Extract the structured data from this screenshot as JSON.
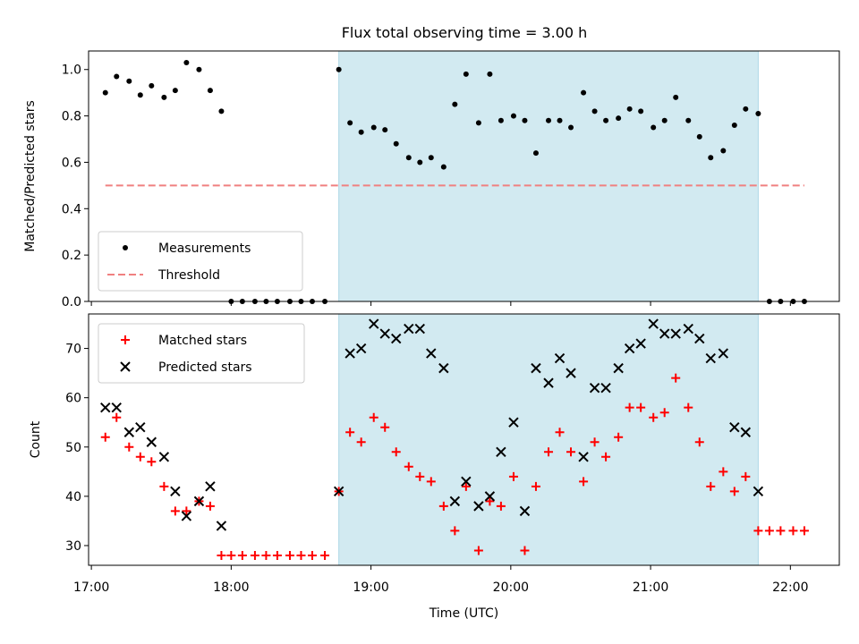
{
  "figure": {
    "title": "Flux total observing time = 3.00 h"
  },
  "chart_data": [
    {
      "type": "scatter",
      "ylabel": "Matched/Predicted stars",
      "xlim": [
        16.98,
        22.35
      ],
      "ylim": [
        0,
        1.08
      ],
      "yticks": [
        "0.0",
        "0.2",
        "0.4",
        "0.6",
        "0.8",
        "1.0"
      ],
      "ytick_values": [
        0,
        0.2,
        0.4,
        0.6,
        0.8,
        1.0
      ],
      "shaded_region": [
        18.77,
        21.77
      ],
      "shade_color": "#add8e6",
      "legend": {
        "placement": "lower-left",
        "entries": [
          "Measurements",
          "Threshold"
        ]
      },
      "series": [
        {
          "name": "Measurements",
          "marker": "dot",
          "color": "#000000",
          "x": [
            17.1,
            17.18,
            17.27,
            17.35,
            17.43,
            17.52,
            17.6,
            17.68,
            17.77,
            17.85,
            17.93,
            18.0,
            18.08,
            18.17,
            18.25,
            18.33,
            18.42,
            18.5,
            18.58,
            18.67,
            18.77,
            18.85,
            18.93,
            19.02,
            19.1,
            19.18,
            19.27,
            19.35,
            19.43,
            19.52,
            19.6,
            19.68,
            19.77,
            19.85,
            19.93,
            20.02,
            20.1,
            20.18,
            20.27,
            20.35,
            20.43,
            20.52,
            20.6,
            20.68,
            20.77,
            20.85,
            20.93,
            21.02,
            21.1,
            21.18,
            21.27,
            21.35,
            21.43,
            21.52,
            21.6,
            21.68,
            21.77,
            21.85,
            21.93,
            22.02,
            22.1
          ],
          "y": [
            0.9,
            0.97,
            0.95,
            0.89,
            0.93,
            0.88,
            0.91,
            1.03,
            1.0,
            0.91,
            0.82,
            0.0,
            0.0,
            0.0,
            0.0,
            0.0,
            0.0,
            0.0,
            0.0,
            0.0,
            1.0,
            0.77,
            0.73,
            0.75,
            0.74,
            0.68,
            0.62,
            0.6,
            0.62,
            0.58,
            0.85,
            0.98,
            0.77,
            0.98,
            0.78,
            0.8,
            0.78,
            0.64,
            0.78,
            0.78,
            0.75,
            0.9,
            0.82,
            0.78,
            0.79,
            0.83,
            0.82,
            0.75,
            0.78,
            0.88,
            0.78,
            0.71,
            0.62,
            0.65,
            0.76,
            0.83,
            0.81,
            0.0,
            0.0,
            0.0,
            0.0
          ]
        },
        {
          "name": "Threshold",
          "style": "dashed",
          "color": "#f08080",
          "x": [
            17.1,
            22.1
          ],
          "y": [
            0.5,
            0.5
          ]
        }
      ]
    },
    {
      "type": "scatter",
      "xlabel": "Time (UTC)",
      "ylabel": "Count",
      "xlim": [
        16.98,
        22.35
      ],
      "ylim": [
        26,
        77
      ],
      "yticks": [
        "30",
        "40",
        "50",
        "60",
        "70"
      ],
      "ytick_values": [
        30,
        40,
        50,
        60,
        70
      ],
      "xticks": [
        "17:00",
        "18:00",
        "19:00",
        "20:00",
        "21:00",
        "22:00"
      ],
      "xtick_values": [
        17,
        18,
        19,
        20,
        21,
        22
      ],
      "shaded_region": [
        18.77,
        21.77
      ],
      "shade_color": "#add8e6",
      "legend": {
        "placement": "upper-left",
        "entries": [
          "Matched stars",
          "Predicted stars"
        ]
      },
      "series": [
        {
          "name": "Matched stars",
          "marker": "plus",
          "color": "#ff0000",
          "x": [
            17.1,
            17.18,
            17.27,
            17.35,
            17.43,
            17.52,
            17.6,
            17.68,
            17.77,
            17.85,
            17.93,
            18.0,
            18.08,
            18.17,
            18.25,
            18.33,
            18.42,
            18.5,
            18.58,
            18.67,
            18.77,
            18.85,
            18.93,
            19.02,
            19.1,
            19.18,
            19.27,
            19.35,
            19.43,
            19.52,
            19.6,
            19.68,
            19.77,
            19.85,
            19.93,
            20.02,
            20.1,
            20.18,
            20.27,
            20.35,
            20.43,
            20.52,
            20.6,
            20.68,
            20.77,
            20.85,
            20.93,
            21.02,
            21.1,
            21.18,
            21.27,
            21.35,
            21.43,
            21.52,
            21.6,
            21.68,
            21.77,
            21.85,
            21.93,
            22.02,
            22.1
          ],
          "y": [
            52,
            56,
            50,
            48,
            47,
            42,
            37,
            37,
            39,
            38,
            28,
            28,
            28,
            28,
            28,
            28,
            28,
            28,
            28,
            28,
            41,
            53,
            51,
            56,
            54,
            49,
            46,
            44,
            43,
            38,
            33,
            42,
            29,
            39,
            38,
            44,
            29,
            42,
            49,
            53,
            49,
            43,
            51,
            48,
            52,
            58,
            58,
            56,
            57,
            64,
            58,
            51,
            42,
            45,
            41,
            44,
            33,
            33,
            33,
            33,
            33
          ]
        },
        {
          "name": "Predicted stars",
          "marker": "x",
          "color": "#000000",
          "x": [
            17.1,
            17.18,
            17.27,
            17.35,
            17.43,
            17.52,
            17.6,
            17.68,
            17.77,
            17.85,
            17.93,
            18.77,
            18.85,
            18.93,
            19.02,
            19.1,
            19.18,
            19.27,
            19.35,
            19.43,
            19.52,
            19.6,
            19.68,
            19.77,
            19.85,
            19.93,
            20.02,
            20.1,
            20.18,
            20.27,
            20.35,
            20.43,
            20.52,
            20.6,
            20.68,
            20.77,
            20.85,
            20.93,
            21.02,
            21.1,
            21.18,
            21.27,
            21.35,
            21.43,
            21.52,
            21.6,
            21.68,
            21.77
          ],
          "y": [
            58,
            58,
            53,
            54,
            51,
            48,
            41,
            36,
            39,
            42,
            34,
            41,
            69,
            70,
            75,
            73,
            72,
            74,
            74,
            69,
            66,
            39,
            43,
            38,
            40,
            49,
            55,
            37,
            66,
            63,
            68,
            65,
            48,
            62,
            62,
            66,
            70,
            71,
            75,
            73,
            73,
            74,
            72,
            68,
            69,
            54,
            53,
            41
          ]
        }
      ]
    }
  ]
}
